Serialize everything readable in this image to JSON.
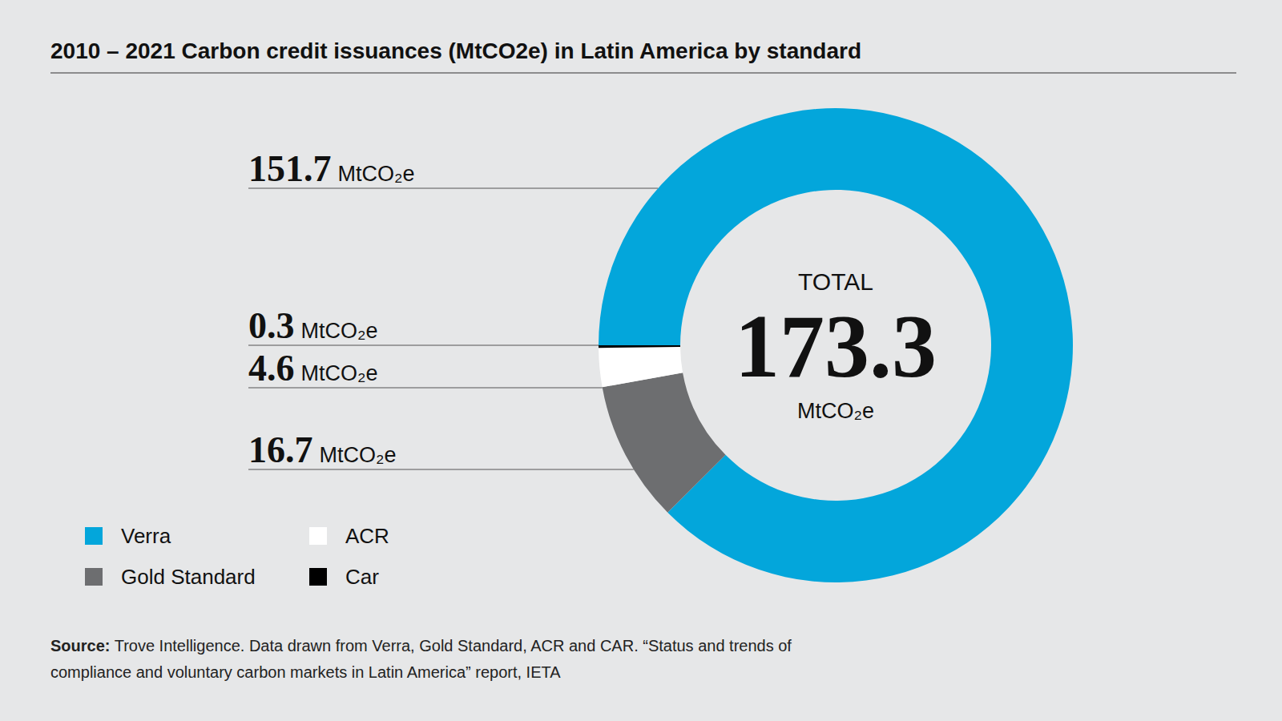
{
  "chart_data": {
    "type": "donut",
    "title": "2010 – 2021 Carbon credit issuances (MtCO2e) in Latin America by standard",
    "categories": [
      "Verra",
      "Gold Standard",
      "ACR",
      "Car"
    ],
    "values": [
      151.7,
      16.7,
      4.6,
      0.3
    ],
    "colors": [
      "#03a6db",
      "#6d6e70",
      "#ffffff",
      "#000000"
    ],
    "unit": "MtCO₂e",
    "total_label": "TOTAL",
    "total": 173.3,
    "data_labels": true,
    "legend": "bottom-left",
    "source_label": "Source:",
    "source": "Trove Intelligence. Data drawn from Verra, Gold Standard, ACR and CAR. “Status and trends of compliance and voluntary carbon markets in Latin America” report, IETA"
  }
}
